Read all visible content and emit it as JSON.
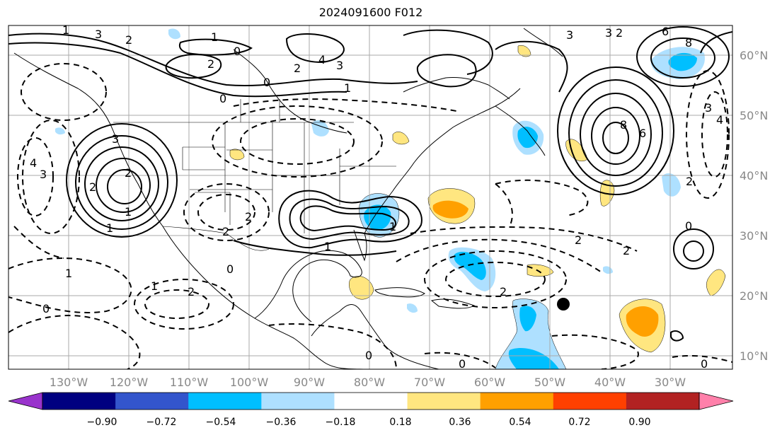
{
  "title": "2024091600 F012",
  "longitude_labels": [
    "130°W",
    "120°W",
    "110°W",
    "100°W",
    "90°W",
    "80°W",
    "70°W",
    "60°W",
    "50°W",
    "40°W",
    "30°W"
  ],
  "latitude_labels": [
    "60°N",
    "50°N",
    "40°N",
    "30°N",
    "20°N",
    "10°N"
  ],
  "colorbar": {
    "ticks": [
      "−0.90",
      "−0.72",
      "−0.54",
      "−0.36",
      "−0.18",
      "0.18",
      "0.36",
      "0.54",
      "0.72",
      "0.90"
    ],
    "colors": [
      "#9933cc",
      "#000080",
      "#3355cc",
      "#00bfff",
      "#aee0ff",
      "#ffffff",
      "#ffe680",
      "#ffa000",
      "#ff4000",
      "#b22222",
      "#ff80aa"
    ]
  },
  "contour_labels": [
    "3",
    "2",
    "1",
    "0",
    "4",
    "3",
    "2",
    "1",
    "0",
    "2",
    "1",
    "3",
    "8",
    "6",
    "6",
    "8",
    "4",
    "3",
    "2",
    "4",
    "3",
    "3",
    "2",
    "2",
    "1",
    "2",
    "1",
    "0",
    "1",
    "1",
    "2",
    "0",
    "2",
    "0",
    "0",
    "1",
    "2",
    "0",
    "0",
    "2",
    "2",
    "0",
    "3",
    "2",
    "1"
  ],
  "marker": {
    "name": "black-dot",
    "lon": -49.5,
    "lat": 18.5
  }
}
